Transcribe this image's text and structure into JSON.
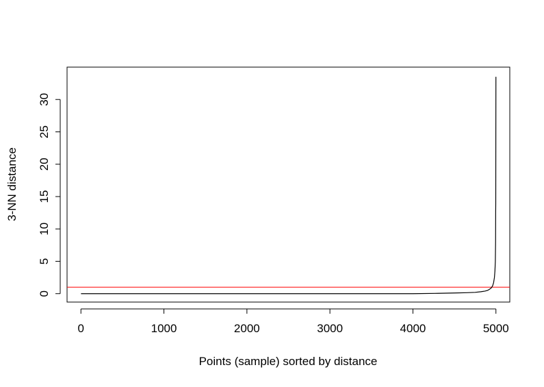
{
  "chart_data": {
    "type": "line",
    "title": "",
    "xlabel": "Points (sample) sorted by distance",
    "ylabel": "3-NN distance",
    "xlim": [
      -167,
      5167
    ],
    "ylim": [
      -1.3,
      35.0
    ],
    "x_ticks": [
      0,
      1000,
      2000,
      3000,
      4000,
      5000
    ],
    "x_tick_labels": [
      "0",
      "1000",
      "2000",
      "3000",
      "4000",
      "5000"
    ],
    "y_ticks": [
      0,
      5,
      10,
      15,
      20,
      25,
      30
    ],
    "y_tick_labels": [
      "0",
      "5",
      "10",
      "15",
      "20",
      "25",
      "30"
    ],
    "grid": false,
    "legend": false,
    "series": [
      {
        "color": "#000000",
        "x": [
          1,
          1000,
          2000,
          3000,
          4000,
          4300,
          4500,
          4650,
          4750,
          4820,
          4870,
          4900,
          4925,
          4945,
          4960,
          4972,
          4982,
          4988,
          4993,
          4996,
          4997,
          4998,
          4999,
          5000
        ],
        "y": [
          0.0,
          0.0,
          0.0,
          0.0,
          0.0,
          0.05,
          0.1,
          0.15,
          0.2,
          0.3,
          0.4,
          0.5,
          0.7,
          0.9,
          1.2,
          1.7,
          2.5,
          3.5,
          5.0,
          8.0,
          12.5,
          14.0,
          25.0,
          33.5
        ]
      }
    ],
    "hlines": [
      {
        "y": 1.0,
        "color": "#ff0000"
      }
    ]
  }
}
